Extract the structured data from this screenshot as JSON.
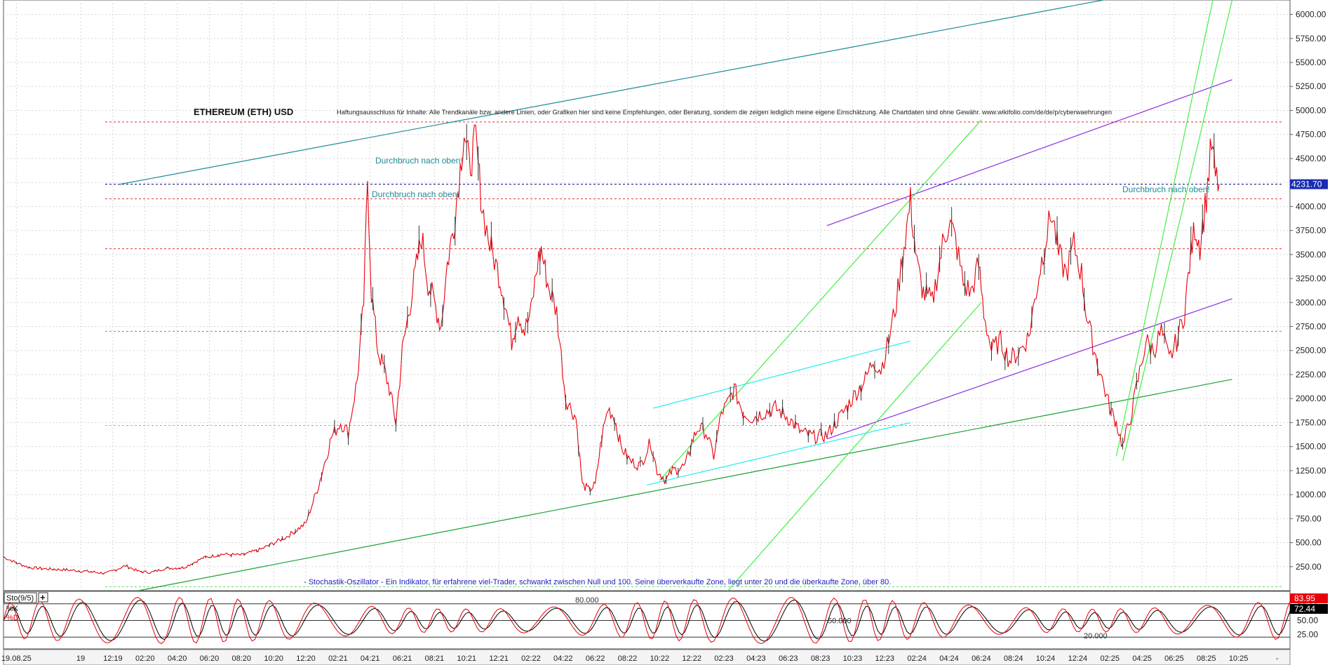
{
  "chart_data": {
    "type": "line",
    "title": "ETHEREUM (ETH) USD",
    "disclaimer": "Haftungsausschluss für Inhalte: Alle Trendkanäle bzw. andere Linien, oder Grafiken hier sind keine Empfehlungen, oder Beratung, sondern die zeigen lediglich meine eigene Einschätzung. Alle Chartdaten sind ohne Gewähr. www.wikifolio.com/de/de/p/cyberwaehrungen",
    "price_axis": {
      "ylim": [
        0,
        6150
      ],
      "ticks": [
        250,
        500,
        750,
        1000,
        1250,
        1500,
        1750,
        2000,
        2250,
        2500,
        2750,
        3000,
        3250,
        3500,
        3750,
        4000,
        4250,
        4500,
        4750,
        5000,
        5250,
        5500,
        5750,
        6000
      ],
      "tick_labels": [
        "250.00",
        "500.00",
        "750.00",
        "1000.00",
        "1250.00",
        "1500.00",
        "1750.00",
        "2000.00",
        "2250.00",
        "2500.00",
        "2750.00",
        "3000.00",
        "3250.00",
        "3500.00",
        "3750.00",
        "4000.00",
        "4250.00",
        "4500.00",
        "4750.00",
        "5000.00",
        "5250.00",
        "5500.00",
        "5750.00",
        "6000.00"
      ],
      "last_value_label": "4231.70",
      "last_value": 4231.7,
      "grid": true
    },
    "x_axis": {
      "labels": [
        "19.08.25",
        "19",
        "12:19",
        "02:20",
        "04:20",
        "06:20",
        "08:20",
        "10:20",
        "12:20",
        "02:21",
        "04:21",
        "06:21",
        "08:21",
        "10:21",
        "12:21",
        "02:22",
        "04:22",
        "06:22",
        "08:22",
        "10:22",
        "12:22",
        "02:23",
        "04:23",
        "06:23",
        "08:23",
        "10:23",
        "12:23",
        "02:24",
        "04:24",
        "06:24",
        "08:24",
        "10:24",
        "12:24",
        "02:25",
        "04:25",
        "06:25",
        "08:25",
        "10:25",
        "-"
      ],
      "label_t": [
        0.01,
        0.06,
        0.085,
        0.11,
        0.135,
        0.16,
        0.185,
        0.21,
        0.235,
        0.26,
        0.285,
        0.31,
        0.335,
        0.36,
        0.385,
        0.41,
        0.435,
        0.46,
        0.485,
        0.51,
        0.535,
        0.56,
        0.585,
        0.61,
        0.635,
        0.66,
        0.685,
        0.71,
        0.735,
        0.76,
        0.785,
        0.81,
        0.835,
        0.86,
        0.885,
        0.91,
        0.935,
        0.96,
        0.99
      ]
    },
    "series": [
      {
        "name": "ETH",
        "color": "#e8000b",
        "points": [
          [
            0.0,
            350
          ],
          [
            0.01,
            290
          ],
          [
            0.02,
            240
          ],
          [
            0.035,
            225
          ],
          [
            0.05,
            215
          ],
          [
            0.065,
            200
          ],
          [
            0.08,
            180
          ],
          [
            0.095,
            260
          ],
          [
            0.105,
            200
          ],
          [
            0.115,
            190
          ],
          [
            0.125,
            230
          ],
          [
            0.14,
            240
          ],
          [
            0.155,
            340
          ],
          [
            0.17,
            380
          ],
          [
            0.185,
            370
          ],
          [
            0.2,
            430
          ],
          [
            0.22,
            560
          ],
          [
            0.235,
            700
          ],
          [
            0.245,
            1100
          ],
          [
            0.255,
            1600
          ],
          [
            0.262,
            1750
          ],
          [
            0.268,
            1650
          ],
          [
            0.275,
            2200
          ],
          [
            0.28,
            3000
          ],
          [
            0.283,
            4300
          ],
          [
            0.286,
            3100
          ],
          [
            0.291,
            2500
          ],
          [
            0.296,
            2300
          ],
          [
            0.3,
            2100
          ],
          [
            0.305,
            1750
          ],
          [
            0.31,
            2500
          ],
          [
            0.315,
            2900
          ],
          [
            0.32,
            3300
          ],
          [
            0.325,
            3700
          ],
          [
            0.33,
            3200
          ],
          [
            0.335,
            3000
          ],
          [
            0.34,
            2750
          ],
          [
            0.345,
            3400
          ],
          [
            0.35,
            3800
          ],
          [
            0.355,
            4400
          ],
          [
            0.358,
            4800
          ],
          [
            0.362,
            4400
          ],
          [
            0.367,
            4700
          ],
          [
            0.372,
            4000
          ],
          [
            0.378,
            3600
          ],
          [
            0.385,
            3300
          ],
          [
            0.39,
            3000
          ],
          [
            0.395,
            2600
          ],
          [
            0.4,
            2900
          ],
          [
            0.405,
            2700
          ],
          [
            0.41,
            2900
          ],
          [
            0.415,
            3400
          ],
          [
            0.418,
            3550
          ],
          [
            0.423,
            3200
          ],
          [
            0.43,
            2900
          ],
          [
            0.437,
            2000
          ],
          [
            0.445,
            1800
          ],
          [
            0.45,
            1100
          ],
          [
            0.455,
            1050
          ],
          [
            0.46,
            1100
          ],
          [
            0.465,
            1600
          ],
          [
            0.47,
            1900
          ],
          [
            0.475,
            1800
          ],
          [
            0.48,
            1500
          ],
          [
            0.487,
            1350
          ],
          [
            0.495,
            1300
          ],
          [
            0.503,
            1550
          ],
          [
            0.508,
            1250
          ],
          [
            0.515,
            1150
          ],
          [
            0.52,
            1250
          ],
          [
            0.53,
            1300
          ],
          [
            0.535,
            1550
          ],
          [
            0.54,
            1700
          ],
          [
            0.546,
            1650
          ],
          [
            0.552,
            1400
          ],
          [
            0.558,
            1850
          ],
          [
            0.563,
            1950
          ],
          [
            0.568,
            2100
          ],
          [
            0.575,
            1850
          ],
          [
            0.582,
            1800
          ],
          [
            0.59,
            1850
          ],
          [
            0.6,
            1900
          ],
          [
            0.61,
            1800
          ],
          [
            0.62,
            1650
          ],
          [
            0.63,
            1600
          ],
          [
            0.64,
            1620
          ],
          [
            0.647,
            1750
          ],
          [
            0.655,
            1900
          ],
          [
            0.662,
            2050
          ],
          [
            0.67,
            2200
          ],
          [
            0.676,
            2400
          ],
          [
            0.682,
            2300
          ],
          [
            0.688,
            2600
          ],
          [
            0.694,
            3000
          ],
          [
            0.7,
            3600
          ],
          [
            0.705,
            4050
          ],
          [
            0.71,
            3400
          ],
          [
            0.715,
            3100
          ],
          [
            0.722,
            3000
          ],
          [
            0.73,
            3600
          ],
          [
            0.735,
            3850
          ],
          [
            0.74,
            3650
          ],
          [
            0.746,
            3200
          ],
          [
            0.752,
            3100
          ],
          [
            0.758,
            3400
          ],
          [
            0.762,
            2900
          ],
          [
            0.768,
            2500
          ],
          [
            0.775,
            2600
          ],
          [
            0.782,
            2400
          ],
          [
            0.79,
            2500
          ],
          [
            0.797,
            2650
          ],
          [
            0.805,
            3300
          ],
          [
            0.81,
            3650
          ],
          [
            0.815,
            3950
          ],
          [
            0.82,
            3500
          ],
          [
            0.826,
            3300
          ],
          [
            0.832,
            3600
          ],
          [
            0.838,
            3300
          ],
          [
            0.842,
            2850
          ],
          [
            0.848,
            2500
          ],
          [
            0.854,
            2200
          ],
          [
            0.86,
            1900
          ],
          [
            0.865,
            1750
          ],
          [
            0.87,
            1500
          ],
          [
            0.876,
            1800
          ],
          [
            0.882,
            2200
          ],
          [
            0.888,
            2600
          ],
          [
            0.894,
            2500
          ],
          [
            0.9,
            2700
          ],
          [
            0.906,
            2400
          ],
          [
            0.912,
            2600
          ],
          [
            0.918,
            2900
          ],
          [
            0.922,
            3400
          ],
          [
            0.926,
            3800
          ],
          [
            0.93,
            3600
          ],
          [
            0.935,
            4100
          ],
          [
            0.939,
            4650
          ],
          [
            0.942,
            4300
          ],
          [
            0.945,
            4231.7
          ]
        ]
      }
    ],
    "trendlines": [
      {
        "color": "#1f8a96",
        "points": [
          [
            0.09,
            4230
          ],
          [
            0.855,
            6150
          ]
        ]
      },
      {
        "color": "#18a030",
        "points": [
          [
            0.105,
            0
          ],
          [
            0.955,
            2200
          ]
        ]
      },
      {
        "color": "#8a2be2",
        "points": [
          [
            0.64,
            1580
          ],
          [
            0.955,
            3040
          ]
        ]
      },
      {
        "color": "#8a2be2",
        "points": [
          [
            0.64,
            3800
          ],
          [
            0.955,
            5320
          ]
        ]
      },
      {
        "color": "#44ee44",
        "points": [
          [
            0.51,
            1150
          ],
          [
            0.76,
            4900
          ]
        ]
      },
      {
        "color": "#44ee44",
        "points": [
          [
            0.55,
            -200
          ],
          [
            0.76,
            3000
          ]
        ]
      },
      {
        "color": "#44ee44",
        "points": [
          [
            0.865,
            1400
          ],
          [
            0.94,
            6150
          ]
        ]
      },
      {
        "color": "#44ee44",
        "points": [
          [
            0.87,
            1350
          ],
          [
            0.955,
            6150
          ]
        ]
      },
      {
        "color": "#22eeee",
        "points": [
          [
            0.505,
            1900
          ],
          [
            0.705,
            2600
          ]
        ]
      },
      {
        "color": "#22eeee",
        "points": [
          [
            0.5,
            1100
          ],
          [
            0.705,
            1750
          ]
        ]
      }
    ],
    "levels": [
      {
        "value": 4880,
        "color": "#e03030"
      },
      {
        "value": 4080,
        "color": "#e03030"
      },
      {
        "value": 3560,
        "color": "#e03030"
      },
      {
        "value": 2700,
        "color": "#22cc22"
      },
      {
        "value": 1720,
        "color": "#66dd66"
      },
      {
        "value": 40,
        "color": "#66dd66"
      },
      {
        "value": 4231.7,
        "color": "#000080"
      }
    ],
    "annotations": [
      "Durchbruch nach oben!",
      "Durchbruch nach oben!",
      "Durchbruch nach oben!"
    ],
    "note": "- Stochastik-Oszillator - Ein Indikator, für erfahrene viel-Trader, schwankt zwischen Null und 100. Seine überverkaufte Zone, liegt unter 20 und die überkaufte Zone, über 80.",
    "stochastic": {
      "label": "Sto(9/5)",
      "k_label": "%K",
      "d_label": "%D",
      "k_value_label": "83.95",
      "d_value_label": "72.44",
      "ticks": [
        25,
        50,
        75
      ],
      "tick_labels": [
        "25.00",
        "50.00",
        "75.00"
      ],
      "levels": [
        80,
        50,
        20
      ],
      "level_labels": [
        "80.000",
        "50.000",
        "20.000"
      ],
      "ylim": [
        0,
        100
      ],
      "k_color": "#e8000b",
      "d_color": "#000000"
    }
  }
}
